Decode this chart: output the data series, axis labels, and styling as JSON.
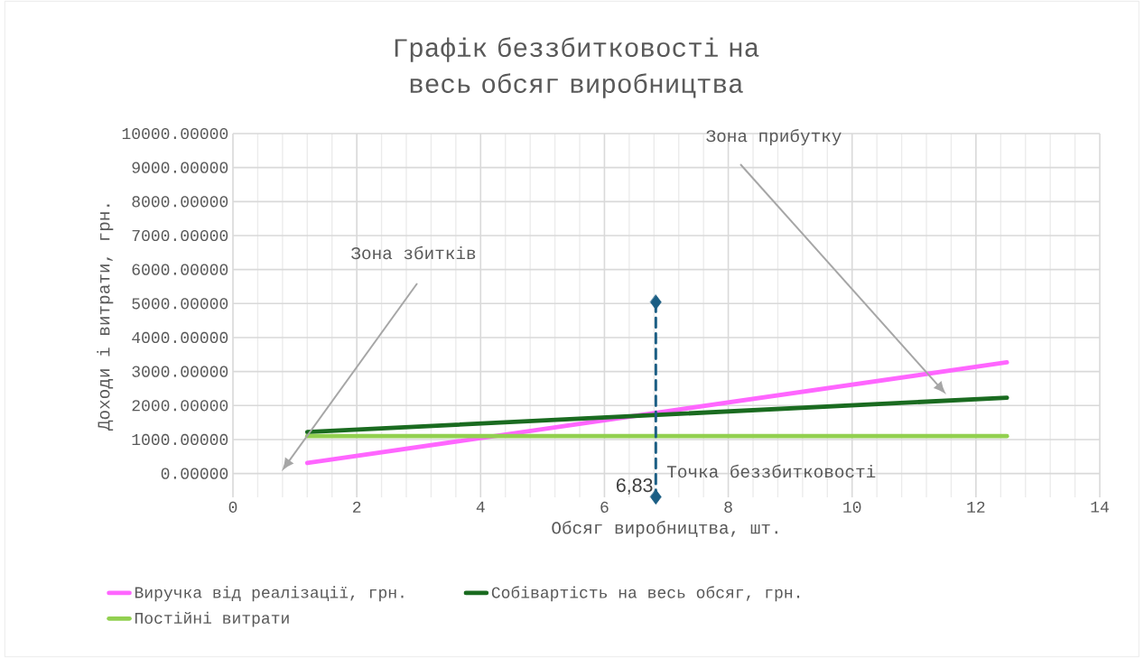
{
  "chart_data": {
    "type": "line",
    "title": "Графік беззбитковості на весь обсяг виробництва",
    "xlabel": "Обсяг виробництва, шт.",
    "ylabel": "Доходи і витрати, грн.",
    "xlim": [
      0,
      14
    ],
    "xticks": [
      0,
      2,
      4,
      6,
      8,
      10,
      12,
      14
    ],
    "ylim": [
      -700,
      10000
    ],
    "yticks": [
      {
        "value": 0,
        "label": "0.00000"
      },
      {
        "value": 1000,
        "label": "1000.00000"
      },
      {
        "value": 2000,
        "label": "2000.00000"
      },
      {
        "value": 3000,
        "label": "3000.00000"
      },
      {
        "value": 4000,
        "label": "4000.00000"
      },
      {
        "value": 5000,
        "label": "5000.00000"
      },
      {
        "value": 6000,
        "label": "6000.00000"
      },
      {
        "value": 7000,
        "label": "7000.00000"
      },
      {
        "value": 8000,
        "label": "8000.00000"
      },
      {
        "value": 9000,
        "label": "9000.00000"
      },
      {
        "value": 10000,
        "label": "10000.00000"
      }
    ],
    "grid": true,
    "legend": "bottom",
    "series": [
      {
        "name": "Виручка від реалізації, грн.",
        "color": "#ff66ff",
        "x": [
          1.2,
          12.5
        ],
        "values": [
          310,
          3270
        ]
      },
      {
        "name": "Собівартість на весь обсяг, грн.",
        "color": "#1a6b20",
        "x": [
          1.2,
          12.5
        ],
        "values": [
          1220,
          2230
        ]
      },
      {
        "name": "Постійні витрати",
        "color": "#92d050",
        "x": [
          1.2,
          12.5
        ],
        "values": [
          1100,
          1100
        ]
      },
      {
        "color": "#1b5e84",
        "x": [
          6.83,
          6.83
        ],
        "values": [
          5040,
          -690
        ],
        "marker": "diamond",
        "line_style": "dashed"
      }
    ],
    "annotations": [
      "Зона прибутку",
      "Зона збитків",
      "Точка беззбитковості",
      {
        "text": "6,83",
        "x": 6.83,
        "y": -690
      }
    ]
  }
}
